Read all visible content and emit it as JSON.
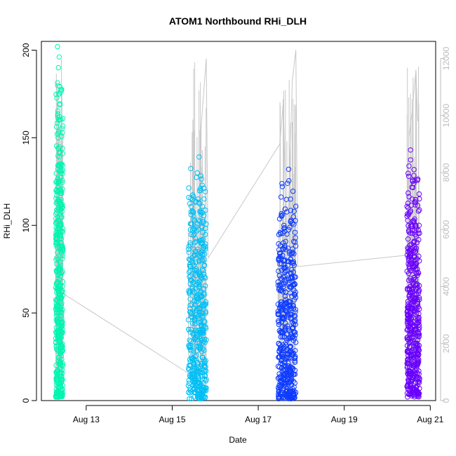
{
  "chart_data": {
    "type": "scatter",
    "title": "ATOM1 Northbound RHi_DLH",
    "xlabel": "Date",
    "ylabel": "RHi_DLH",
    "x_unit": "date",
    "xlim": [
      "2024-08-11T23:00",
      "2024-08-21T03:00"
    ],
    "ylim": [
      0,
      205
    ],
    "y2lim": [
      0,
      12600
    ],
    "x_ticks": [
      {
        "label": "Aug 13",
        "value": "2024-08-13"
      },
      {
        "label": "Aug 15",
        "value": "2024-08-15"
      },
      {
        "label": "Aug 17",
        "value": "2024-08-17"
      },
      {
        "label": "Aug 19",
        "value": "2024-08-19"
      },
      {
        "label": "Aug 21",
        "value": "2024-08-21"
      }
    ],
    "y_ticks": [
      {
        "label": "0",
        "value": 0
      },
      {
        "label": "50",
        "value": 50
      },
      {
        "label": "100",
        "value": 100
      },
      {
        "label": "150",
        "value": 150
      },
      {
        "label": "200",
        "value": 200
      }
    ],
    "y2_ticks": [
      {
        "label": "0",
        "value": 0
      },
      {
        "label": "2000",
        "value": 2000
      },
      {
        "label": "4000",
        "value": 4000
      },
      {
        "label": "6000",
        "value": 6000
      },
      {
        "label": "8000",
        "value": 8000
      },
      {
        "label": "10000",
        "value": 10000
      },
      {
        "label": "12000",
        "value": 12000
      }
    ],
    "grid": false,
    "marker": "open-circle",
    "series": [
      {
        "color": "#00f5b0",
        "x_range": [
          "2024-08-12T07:00",
          "2024-08-12T11:00"
        ],
        "y_range": [
          2,
          202
        ],
        "points": [
          {
            "x": "2024-08-12T08:00",
            "y": 202
          },
          {
            "x": "2024-08-12T08:30",
            "y": 190
          },
          {
            "x": "2024-08-12T09:00",
            "y": 175
          },
          {
            "x": "2024-08-12T08:20",
            "y": 150
          },
          {
            "x": "2024-08-12T09:30",
            "y": 120
          },
          {
            "x": "2024-08-12T10:00",
            "y": 105
          },
          {
            "x": "2024-08-12T07:30",
            "y": 90
          },
          {
            "x": "2024-08-12T08:45",
            "y": 75
          },
          {
            "x": "2024-08-12T09:15",
            "y": 60
          },
          {
            "x": "2024-08-12T07:45",
            "y": 45
          },
          {
            "x": "2024-08-12T10:15",
            "y": 30
          },
          {
            "x": "2024-08-12T09:45",
            "y": 15
          },
          {
            "x": "2024-08-12T08:10",
            "y": 2
          },
          {
            "x": "2024-08-12T10:30",
            "y": 3
          }
        ]
      },
      {
        "color": "#00bff5",
        "x_range": [
          "2024-08-15T09:00",
          "2024-08-15T19:00"
        ],
        "y_range": [
          1,
          139
        ],
        "points": [
          {
            "x": "2024-08-15T15:00",
            "y": 139
          },
          {
            "x": "2024-08-15T14:00",
            "y": 130
          },
          {
            "x": "2024-08-15T16:00",
            "y": 120
          },
          {
            "x": "2024-08-15T12:00",
            "y": 105
          },
          {
            "x": "2024-08-15T10:00",
            "y": 90
          },
          {
            "x": "2024-08-15T17:00",
            "y": 80
          },
          {
            "x": "2024-08-15T11:00",
            "y": 65
          },
          {
            "x": "2024-08-15T13:00",
            "y": 50
          },
          {
            "x": "2024-08-15T18:00",
            "y": 35
          },
          {
            "x": "2024-08-15T09:30",
            "y": 20
          },
          {
            "x": "2024-08-15T15:30",
            "y": 10
          },
          {
            "x": "2024-08-15T18:30",
            "y": 2
          }
        ]
      },
      {
        "color": "#0f3cff",
        "x_range": [
          "2024-08-17T11:00",
          "2024-08-17T21:00"
        ],
        "y_range": [
          1,
          132
        ],
        "points": [
          {
            "x": "2024-08-17T17:00",
            "y": 132
          },
          {
            "x": "2024-08-17T18:00",
            "y": 115
          },
          {
            "x": "2024-08-17T20:00",
            "y": 108
          },
          {
            "x": "2024-08-17T16:00",
            "y": 95
          },
          {
            "x": "2024-08-17T14:00",
            "y": 80
          },
          {
            "x": "2024-08-17T19:00",
            "y": 70
          },
          {
            "x": "2024-08-17T13:00",
            "y": 55
          },
          {
            "x": "2024-08-17T15:00",
            "y": 40
          },
          {
            "x": "2024-08-17T12:00",
            "y": 25
          },
          {
            "x": "2024-08-17T20:30",
            "y": 15
          },
          {
            "x": "2024-08-17T11:30",
            "y": 5
          },
          {
            "x": "2024-08-17T17:30",
            "y": 2
          }
        ]
      },
      {
        "color": "#6a00ff",
        "x_range": [
          "2024-08-20T11:00",
          "2024-08-20T18:00"
        ],
        "y_range": [
          2,
          143
        ],
        "points": [
          {
            "x": "2024-08-20T13:00",
            "y": 143
          },
          {
            "x": "2024-08-20T12:00",
            "y": 128
          },
          {
            "x": "2024-08-20T14:00",
            "y": 115
          },
          {
            "x": "2024-08-20T16:00",
            "y": 100
          },
          {
            "x": "2024-08-20T11:30",
            "y": 85
          },
          {
            "x": "2024-08-20T15:00",
            "y": 70
          },
          {
            "x": "2024-08-20T17:00",
            "y": 55
          },
          {
            "x": "2024-08-20T12:30",
            "y": 40
          },
          {
            "x": "2024-08-20T16:30",
            "y": 25
          },
          {
            "x": "2024-08-20T11:00",
            "y": 8
          },
          {
            "x": "2024-08-20T17:30",
            "y": 3
          }
        ]
      }
    ],
    "secondary_line": {
      "color": "#c8c8c8",
      "axis": "right",
      "points": [
        {
          "x": "2024-08-12T09:00",
          "y": 1200
        },
        {
          "x": "2024-08-12T10:00",
          "y": 3800
        },
        {
          "x": "2024-08-15T13:00",
          "y": 800
        },
        {
          "x": "2024-08-15T16:00",
          "y": 9500
        },
        {
          "x": "2024-08-15T19:00",
          "y": 12000
        },
        {
          "x": "2024-08-15T20:00",
          "y": 5000
        },
        {
          "x": "2024-08-17T12:00",
          "y": 9000
        },
        {
          "x": "2024-08-17T14:00",
          "y": 10500
        },
        {
          "x": "2024-08-17T16:00",
          "y": 4700
        },
        {
          "x": "2024-08-17T19:00",
          "y": 11200
        },
        {
          "x": "2024-08-17T21:00",
          "y": 12300
        },
        {
          "x": "2024-08-17T22:00",
          "y": 4700
        },
        {
          "x": "2024-08-20T11:00",
          "y": 5100
        },
        {
          "x": "2024-08-20T12:00",
          "y": 9200
        },
        {
          "x": "2024-08-20T14:00",
          "y": 10200
        },
        {
          "x": "2024-08-20T16:00",
          "y": 11600
        },
        {
          "x": "2024-08-20T17:00",
          "y": 9800
        }
      ]
    }
  }
}
